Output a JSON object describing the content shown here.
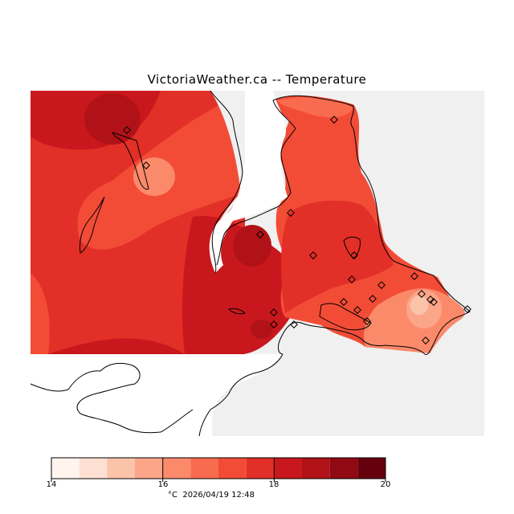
{
  "title": "VictoriaWeather.ca -- Temperature",
  "legend": {
    "ticks": [
      "14",
      "16",
      "18",
      "20"
    ],
    "colors": [
      "#fff4ee",
      "#fee0d2",
      "#fcc3ab",
      "#fca689",
      "#fb8a6b",
      "#f96b4e",
      "#f24c37",
      "#e22f27",
      "#c9181d",
      "#b11218",
      "#900a14",
      "#67000d"
    ]
  },
  "footer": {
    "unit": "°C",
    "timestamp": "2026/04/19 12:48"
  },
  "colors": {
    "land_mask": "#f0f0f0",
    "outline": "#000000"
  },
  "map_data": {
    "stations_count": 22
  }
}
